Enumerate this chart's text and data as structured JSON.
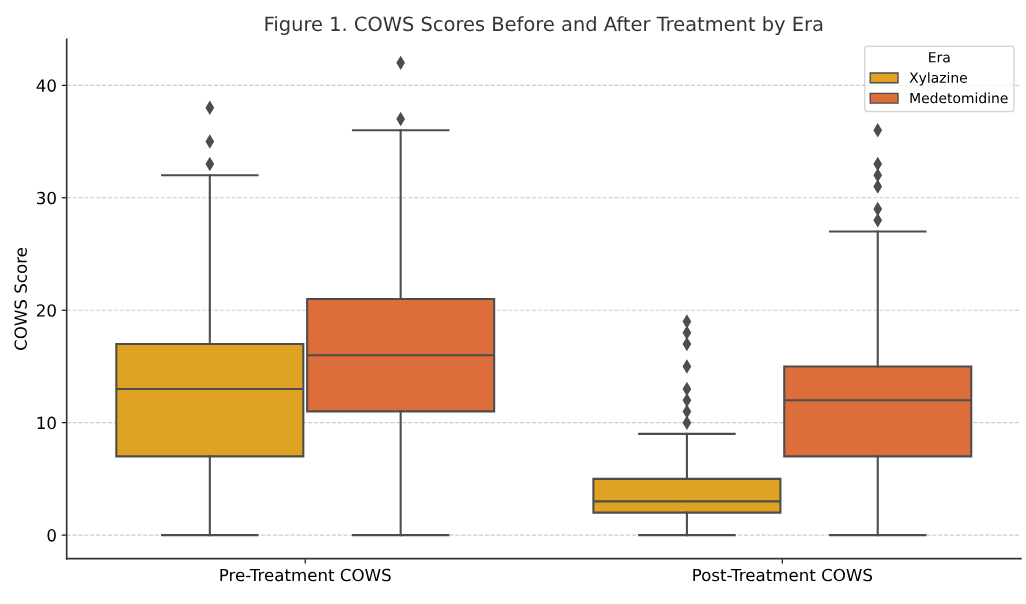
{
  "chart_data": {
    "type": "box",
    "title": "Figure 1. COWS Scores Before and After Treatment by Era",
    "ylabel": "COWS Score",
    "legend_title": "Era",
    "categories": [
      "Pre-Treatment COWS",
      "Post-Treatment COWS"
    ],
    "series": [
      {
        "name": "Xylazine",
        "color": "#dfa223",
        "boxes": [
          {
            "low": 0,
            "q1": 7,
            "median": 13,
            "q3": 17,
            "high": 32,
            "outliers": [
              33,
              35,
              38
            ]
          },
          {
            "low": 0,
            "q1": 2,
            "median": 3,
            "q3": 5,
            "high": 9,
            "outliers": [
              10,
              11,
              12,
              13,
              15,
              17,
              18,
              19
            ]
          }
        ]
      },
      {
        "name": "Medetomidine",
        "color": "#dd6e3c",
        "boxes": [
          {
            "low": 0,
            "q1": 11,
            "median": 16,
            "q3": 21,
            "high": 36,
            "outliers": [
              37,
              42
            ]
          },
          {
            "low": 0,
            "q1": 7,
            "median": 12,
            "q3": 15,
            "high": 27,
            "outliers": [
              28,
              29,
              31,
              32,
              33,
              36
            ]
          }
        ]
      }
    ],
    "ylim": [
      -2.1,
      44.1
    ],
    "yticks": [
      0,
      10,
      20,
      30,
      40
    ],
    "grid": "y",
    "legend": "top right"
  }
}
